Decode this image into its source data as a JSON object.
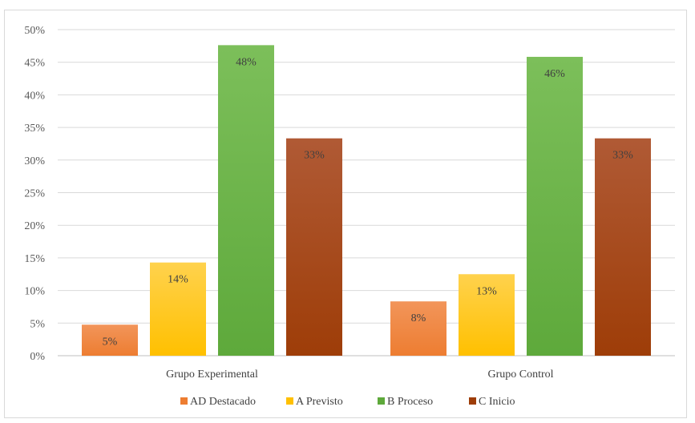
{
  "chart_data": {
    "type": "bar",
    "categories": [
      "Grupo Experimental",
      "Grupo Control"
    ],
    "series": [
      {
        "name": "AD Destacado",
        "values": [
          4.76,
          8.33
        ],
        "labels": [
          "5%",
          "8%"
        ],
        "color": "#ED7D31",
        "color_light": "#F2955A"
      },
      {
        "name": "A Previsto",
        "values": [
          14.29,
          12.5
        ],
        "labels": [
          "14%",
          "13%"
        ],
        "color": "#FFC000",
        "color_light": "#FFD24D"
      },
      {
        "name": "B Proceso",
        "values": [
          47.62,
          45.83
        ],
        "labels": [
          "48%",
          "46%"
        ],
        "color": "#5EA93B",
        "color_light": "#7CBF5A"
      },
      {
        "name": "C Inicio",
        "values": [
          33.33,
          33.33
        ],
        "labels": [
          "33%",
          "33%"
        ],
        "color": "#9E3D08",
        "color_light": "#B05A35"
      }
    ],
    "y_ticks": [
      "0%",
      "5%",
      "10%",
      "15%",
      "20%",
      "25%",
      "30%",
      "35%",
      "40%",
      "45%",
      "50%"
    ],
    "ylim": [
      0,
      50
    ],
    "grid": true,
    "legend_position": "bottom"
  }
}
